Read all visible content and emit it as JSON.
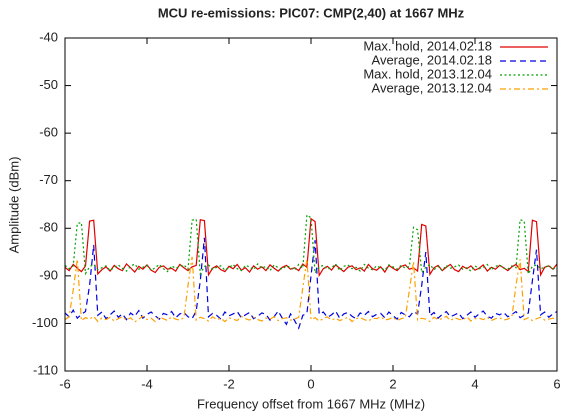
{
  "chart_data": {
    "type": "line",
    "title": "MCU re-emissions: PIC07: CMP(2,40) at 1667 MHz",
    "x_label": "Frequency offset from 1667 MHz (MHz)",
    "y_label": "Amplitude (dBm)",
    "xlim": [
      -6,
      6
    ],
    "xticks": [
      -6,
      -4,
      -2,
      0,
      2,
      4,
      6
    ],
    "ylim": [
      -110,
      -40
    ],
    "yticks": [
      -110,
      -100,
      -90,
      -80,
      -70,
      -60,
      -50,
      -40
    ],
    "grid": false,
    "legend": "upper right",
    "x": [
      -6,
      -5.9,
      -5.8,
      -5.7,
      -5.6,
      -5.5,
      -5.4,
      -5.3,
      -5.2,
      -5.1,
      -5,
      -4.9,
      -4.8,
      -4.7,
      -4.6,
      -4.5,
      -4.4,
      -4.3,
      -4.2,
      -4.1,
      -4,
      -3.9,
      -3.8,
      -3.7,
      -3.6,
      -3.5,
      -3.4,
      -3.3,
      -3.2,
      -3.1,
      -3,
      -2.9,
      -2.8,
      -2.7,
      -2.6,
      -2.5,
      -2.4,
      -2.3,
      -2.2,
      -2.1,
      -2,
      -1.9,
      -1.8,
      -1.7,
      -1.6,
      -1.5,
      -1.4,
      -1.3,
      -1.2,
      -1.1,
      -1,
      -0.9,
      -0.8,
      -0.7,
      -0.6,
      -0.5,
      -0.4,
      -0.3,
      -0.2,
      -0.1,
      0,
      0.1,
      0.2,
      0.3,
      0.4,
      0.5,
      0.6,
      0.7,
      0.8,
      0.9,
      1,
      1.1,
      1.2,
      1.3,
      1.4,
      1.5,
      1.6,
      1.7,
      1.8,
      1.9,
      2,
      2.1,
      2.2,
      2.3,
      2.4,
      2.5,
      2.6,
      2.7,
      2.8,
      2.9,
      3,
      3.1,
      3.2,
      3.3,
      3.4,
      3.5,
      3.6,
      3.7,
      3.8,
      3.9,
      4,
      4.1,
      4.2,
      4.3,
      4.4,
      4.5,
      4.6,
      4.7,
      4.8,
      4.9,
      5,
      5.1,
      5.2,
      5.3,
      5.4,
      5.5,
      5.6,
      5.7,
      5.8,
      5.9,
      6
    ],
    "series": [
      {
        "name": "Max. hold, 2014.02.18",
        "color": "#e00000",
        "dash": "solid",
        "values": [
          -88.2,
          -88.9,
          -87.6,
          -88.4,
          -89.1,
          -87.9,
          -78.5,
          -78.3,
          -89.6,
          -88.7,
          -88.1,
          -89.0,
          -87.8,
          -88.5,
          -88.9,
          -87.5,
          -88.3,
          -89.2,
          -88.0,
          -88.6,
          -87.7,
          -88.8,
          -89.3,
          -88.2,
          -87.9,
          -88.6,
          -88.4,
          -89.0,
          -87.6,
          -88.3,
          -88.9,
          -88.1,
          -87.8,
          -78.2,
          -78.4,
          -89.8,
          -88.4,
          -87.9,
          -88.7,
          -89.1,
          -88.0,
          -88.5,
          -87.6,
          -88.8,
          -88.3,
          -89.2,
          -87.9,
          -88.6,
          -88.1,
          -88.9,
          -87.7,
          -88.4,
          -89.0,
          -88.2,
          -87.8,
          -88.6,
          -88.3,
          -88.9,
          -87.5,
          -88.2,
          -78.0,
          -78.6,
          -89.9,
          -88.5,
          -88.0,
          -88.8,
          -87.7,
          -88.4,
          -89.1,
          -88.2,
          -87.9,
          -88.7,
          -88.3,
          -89.0,
          -87.6,
          -88.5,
          -88.8,
          -88.1,
          -89.2,
          -87.8,
          -88.4,
          -88.9,
          -88.0,
          -87.7,
          -88.6,
          -88.3,
          -89.0,
          -79.2,
          -79.5,
          -89.7,
          -88.3,
          -87.8,
          -88.9,
          -88.2,
          -87.6,
          -88.7,
          -89.1,
          -88.0,
          -88.5,
          -87.9,
          -88.8,
          -88.4,
          -87.7,
          -89.0,
          -88.2,
          -88.6,
          -87.8,
          -88.3,
          -88.9,
          -88.1,
          -87.6,
          -88.7,
          -88.4,
          -89.1,
          -78.3,
          -78.6,
          -89.8,
          -88.2,
          -87.9,
          -88.6,
          -87.5
        ]
      },
      {
        "name": "Average, 2014.02.18",
        "color": "#0000e0",
        "dash": "dashed",
        "values": [
          -97.8,
          -98.6,
          -97.2,
          -98.9,
          -98.1,
          -97.5,
          -92.0,
          -83.5,
          -98.3,
          -97.6,
          -99.0,
          -98.2,
          -97.4,
          -98.7,
          -98.0,
          -99.2,
          -97.8,
          -98.5,
          -97.3,
          -98.9,
          -98.1,
          -97.6,
          -98.4,
          -99.1,
          -97.9,
          -98.2,
          -97.5,
          -98.8,
          -98.0,
          -97.7,
          -98.6,
          -99.0,
          -97.4,
          -91.0,
          -82.0,
          -98.6,
          -97.9,
          -98.3,
          -99.1,
          -97.6,
          -98.4,
          -98.0,
          -97.5,
          -98.8,
          -98.2,
          -97.7,
          -99.0,
          -98.5,
          -97.8,
          -98.1,
          -99.3,
          -98.6,
          -97.4,
          -98.9,
          -100.2,
          -98.0,
          -99.4,
          -101.0,
          -98.3,
          -97.9,
          -90.0,
          -82.5,
          -98.1,
          -97.6,
          -98.7,
          -98.2,
          -97.4,
          -98.9,
          -98.0,
          -97.7,
          -98.5,
          -99.0,
          -97.8,
          -98.3,
          -97.5,
          -98.6,
          -98.1,
          -97.9,
          -98.8,
          -97.6,
          -98.4,
          -99.1,
          -97.7,
          -98.2,
          -98.6,
          -97.5,
          -98.0,
          -92.0,
          -85.0,
          -98.4,
          -97.7,
          -98.9,
          -98.1,
          -97.5,
          -98.6,
          -98.2,
          -97.8,
          -99.0,
          -98.3,
          -97.6,
          -98.7,
          -98.0,
          -97.4,
          -98.5,
          -98.9,
          -97.9,
          -98.2,
          -97.7,
          -98.6,
          -98.1,
          -97.5,
          -98.8,
          -98.3,
          -97.8,
          -91.0,
          -84.5,
          -98.2,
          -97.6,
          -98.7,
          -98.0,
          -97.5
        ]
      },
      {
        "name": "Max. hold, 2013.12.04",
        "color": "#00a000",
        "dash": "dotted",
        "values": [
          -87.8,
          -88.5,
          -87.9,
          -79.0,
          -78.8,
          -89.5,
          -88.1,
          -87.6,
          -88.7,
          -88.3,
          -87.9,
          -88.9,
          -88.2,
          -87.7,
          -88.4,
          -89.0,
          -88.0,
          -87.5,
          -88.6,
          -88.2,
          -87.8,
          -88.8,
          -88.3,
          -87.6,
          -88.5,
          -89.1,
          -87.9,
          -88.4,
          -88.0,
          -87.7,
          -88.6,
          -78.3,
          -78.1,
          -89.6,
          -88.0,
          -87.7,
          -88.6,
          -88.2,
          -87.9,
          -88.8,
          -88.3,
          -87.6,
          -88.5,
          -88.9,
          -87.8,
          -88.1,
          -88.7,
          -87.5,
          -88.4,
          -88.0,
          -88.9,
          -87.7,
          -88.3,
          -88.6,
          -87.9,
          -88.2,
          -88.8,
          -87.6,
          -88.4,
          -77.2,
          -77.8,
          -89.4,
          -88.1,
          -87.8,
          -88.6,
          -88.3,
          -87.5,
          -88.9,
          -88.0,
          -87.7,
          -88.5,
          -88.2,
          -89.0,
          -87.6,
          -88.4,
          -88.7,
          -87.9,
          -88.3,
          -88.8,
          -87.7,
          -88.1,
          -88.6,
          -87.8,
          -88.4,
          -88.0,
          -79.8,
          -80.3,
          -89.3,
          -88.2,
          -87.6,
          -88.7,
          -88.0,
          -88.9,
          -87.8,
          -88.4,
          -88.1,
          -87.7,
          -88.6,
          -88.3,
          -89.0,
          -87.9,
          -88.5,
          -88.2,
          -87.6,
          -88.8,
          -88.0,
          -87.7,
          -88.4,
          -88.6,
          -87.9,
          -88.3,
          -78.2,
          -78.5,
          -89.6,
          -88.0,
          -87.7,
          -88.5,
          -88.2,
          -87.8,
          -88.6,
          -88.1
        ]
      },
      {
        "name": "Average, 2013.12.04",
        "color": "#ffa000",
        "dash": "dashdot",
        "values": [
          -99.2,
          -98.6,
          -93.0,
          -86.5,
          -99.4,
          -98.8,
          -99.1,
          -98.5,
          -99.6,
          -98.9,
          -99.2,
          -98.7,
          -99.5,
          -99.0,
          -98.6,
          -99.3,
          -98.8,
          -99.7,
          -99.1,
          -98.5,
          -99.2,
          -98.9,
          -99.6,
          -98.7,
          -99.0,
          -99.4,
          -98.6,
          -99.1,
          -99.3,
          -98.8,
          -92.0,
          -86.0,
          -99.3,
          -98.7,
          -99.0,
          -99.5,
          -98.6,
          -99.2,
          -98.9,
          -99.6,
          -98.8,
          -99.1,
          -99.4,
          -98.5,
          -99.0,
          -99.3,
          -98.7,
          -99.2,
          -99.5,
          -98.9,
          -99.1,
          -98.6,
          -99.4,
          -99.0,
          -98.8,
          -99.3,
          -99.1,
          -98.7,
          -92.5,
          -86.5,
          -99.2,
          -98.8,
          -99.5,
          -99.0,
          -98.6,
          -99.3,
          -98.9,
          -99.4,
          -99.1,
          -98.7,
          -99.6,
          -99.0,
          -98.8,
          -99.2,
          -99.5,
          -98.9,
          -99.0,
          -98.6,
          -99.3,
          -99.1,
          -98.7,
          -99.4,
          -99.0,
          -98.8,
          -93.0,
          -87.0,
          -99.3,
          -98.9,
          -99.1,
          -99.6,
          -98.7,
          -99.2,
          -99.0,
          -98.5,
          -99.4,
          -98.8,
          -99.1,
          -99.3,
          -98.6,
          -99.5,
          -99.0,
          -98.9,
          -99.2,
          -98.7,
          -99.4,
          -99.0,
          -98.8,
          -99.3,
          -99.1,
          -98.6,
          -92.0,
          -86.5,
          -99.2,
          -98.8,
          -99.4,
          -99.0,
          -98.7,
          -99.3,
          -99.1,
          -98.9,
          -99.2
        ]
      }
    ]
  }
}
